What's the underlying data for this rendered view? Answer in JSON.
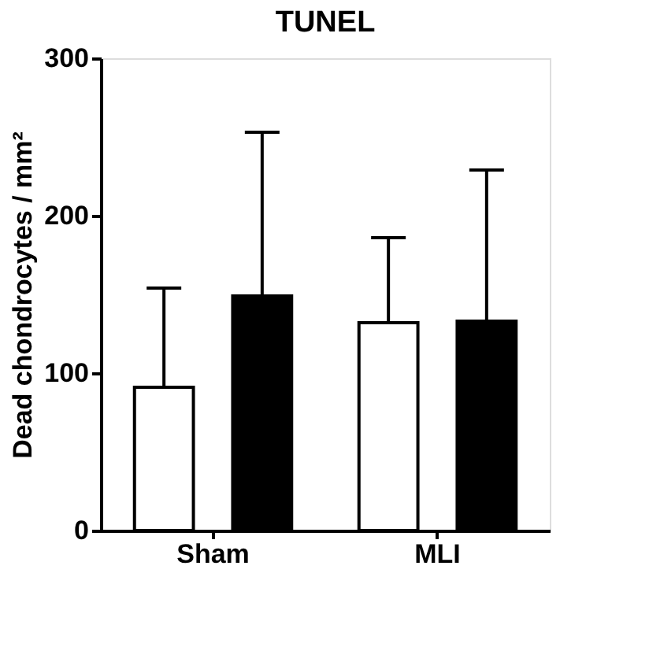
{
  "chart_data": {
    "type": "bar",
    "title": "TUNEL",
    "ylabel": "Dead chondrocytes / mm²",
    "categories": [
      "Sham",
      "MLI"
    ],
    "series": [
      {
        "color": "#ffffff",
        "values": [
          91,
          132
        ],
        "errors": [
          [
            91,
            154
          ],
          [
            132,
            186
          ]
        ]
      },
      {
        "color": "#000000",
        "values": [
          149,
          133
        ],
        "errors": [
          [
            149,
            253
          ],
          [
            133,
            229
          ]
        ]
      }
    ],
    "ylim": [
      0,
      300
    ],
    "yticks": [
      0,
      100,
      200,
      300
    ],
    "grid": false
  }
}
